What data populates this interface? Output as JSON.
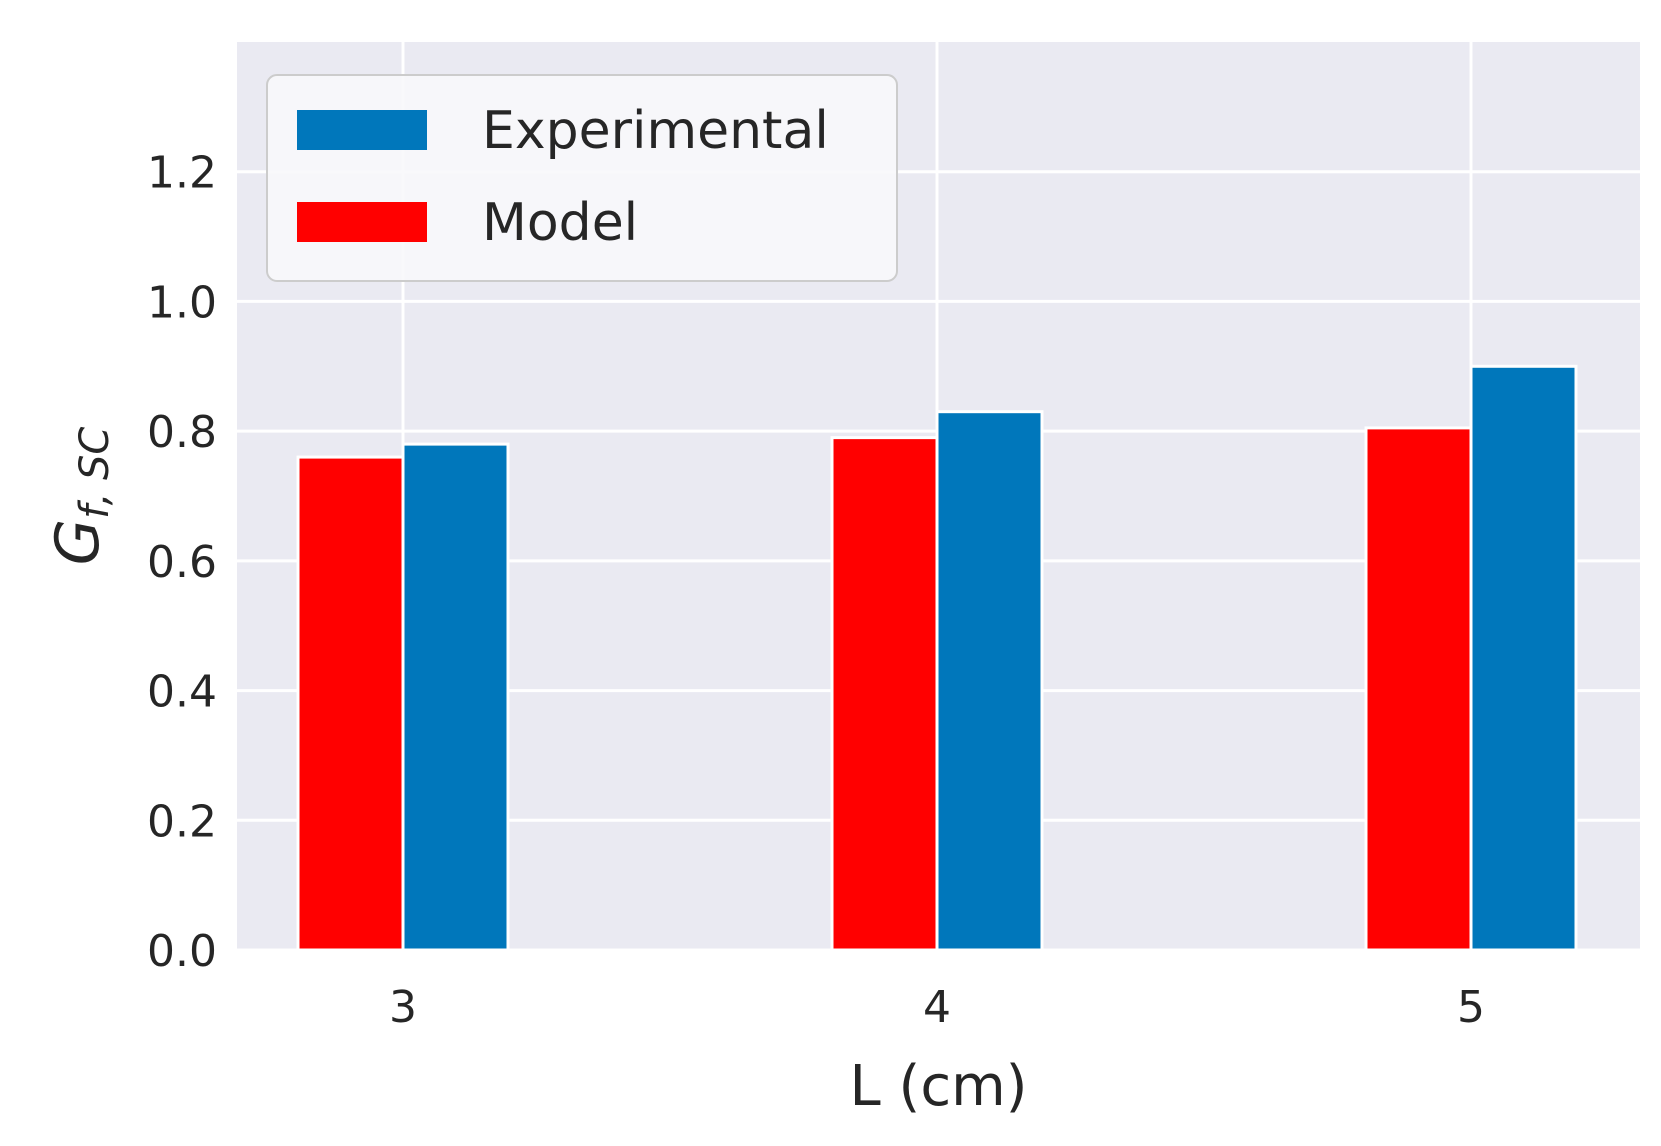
{
  "chart_data": {
    "type": "bar",
    "title": "",
    "xlabel": "L (cm)",
    "ylabel_base": "G",
    "ylabel_sub": "f, SC",
    "categories": [
      "3",
      "4",
      "5"
    ],
    "series": [
      {
        "name": "Model",
        "color": "#ff0000",
        "values": [
          0.76,
          0.79,
          0.805
        ]
      },
      {
        "name": "Experimental",
        "color": "#0077bb",
        "values": [
          0.78,
          0.83,
          0.9
        ]
      }
    ],
    "legend_order": [
      "Experimental",
      "Model"
    ],
    "ylim": [
      0,
      1.4
    ],
    "yticks": [
      0.0,
      0.2,
      0.4,
      0.6,
      0.8,
      1.0,
      1.2
    ],
    "ytick_labels": [
      "0.0",
      "0.2",
      "0.4",
      "0.6",
      "0.8",
      "1.0",
      "1.2"
    ],
    "grid": true,
    "legend_position": "top-left",
    "colors": {
      "background": "#eaeaf2",
      "grid": "#ffffff"
    }
  }
}
